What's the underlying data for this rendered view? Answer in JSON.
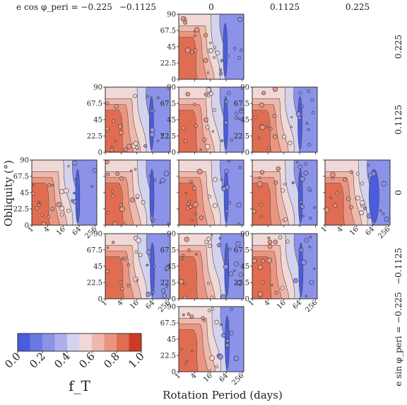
{
  "chart_data": {
    "type": "heatmap",
    "xlabel": "Rotation Period (days)",
    "ylabel": "Obliquity (°)",
    "x_scale": "log2",
    "x_ticks": [
      "1",
      "4",
      "16",
      "64",
      "256"
    ],
    "y_ticks": [
      "0",
      "22.5",
      "45",
      "67.5",
      "90"
    ],
    "xlim": [
      1,
      300
    ],
    "ylim": [
      0,
      90
    ],
    "column_axis_label": "e cos φ_peri",
    "column_values": [
      "−0.225",
      "−0.1125",
      "0",
      "0.1125",
      "0.225"
    ],
    "row_axis_label": "e sin φ_peri",
    "row_values": [
      "0.225",
      "0.1125",
      "0",
      "−0.1125",
      "−0.225"
    ],
    "panels": [
      {
        "row": 0,
        "col": 2,
        "x_ticks_shown": false,
        "y_ticks_shown": true
      },
      {
        "row": 1,
        "col": 1,
        "x_ticks_shown": false,
        "y_ticks_shown": true
      },
      {
        "row": 1,
        "col": 2,
        "x_ticks_shown": false,
        "y_ticks_shown": true
      },
      {
        "row": 1,
        "col": 3,
        "x_ticks_shown": false,
        "y_ticks_shown": true
      },
      {
        "row": 2,
        "col": 0,
        "x_ticks_shown": true,
        "y_ticks_shown": true
      },
      {
        "row": 2,
        "col": 1,
        "x_ticks_shown": false,
        "y_ticks_shown": false
      },
      {
        "row": 2,
        "col": 2,
        "x_ticks_shown": false,
        "y_ticks_shown": false
      },
      {
        "row": 2,
        "col": 3,
        "x_ticks_shown": false,
        "y_ticks_shown": false
      },
      {
        "row": 2,
        "col": 4,
        "x_ticks_shown": true,
        "y_ticks_shown": false
      },
      {
        "row": 3,
        "col": 1,
        "x_ticks_shown": true,
        "y_ticks_shown": true
      },
      {
        "row": 3,
        "col": 2,
        "x_ticks_shown": false,
        "y_ticks_shown": true
      },
      {
        "row": 3,
        "col": 3,
        "x_ticks_shown": true,
        "y_ticks_shown": true
      },
      {
        "row": 4,
        "col": 2,
        "x_ticks_shown": true,
        "y_ticks_shown": true
      }
    ],
    "colorbar": {
      "label": "f_T",
      "ticks": [
        "0.0",
        "0.2",
        "0.4",
        "0.6",
        "0.8",
        "1.0"
      ],
      "levels": 10,
      "colors": [
        "#4a5ce0",
        "#6a78e4",
        "#8b92e8",
        "#aeb0ec",
        "#d3d3ee",
        "#efd8d6",
        "#f0b8ac",
        "#eb9580",
        "#e06d52",
        "#cf3a24"
      ]
    },
    "contour_field": {
      "description": "fraction f_T across period/obliquity; high (red) at short periods and low-mid obliquity, dropping to blue at long periods"
    }
  }
}
